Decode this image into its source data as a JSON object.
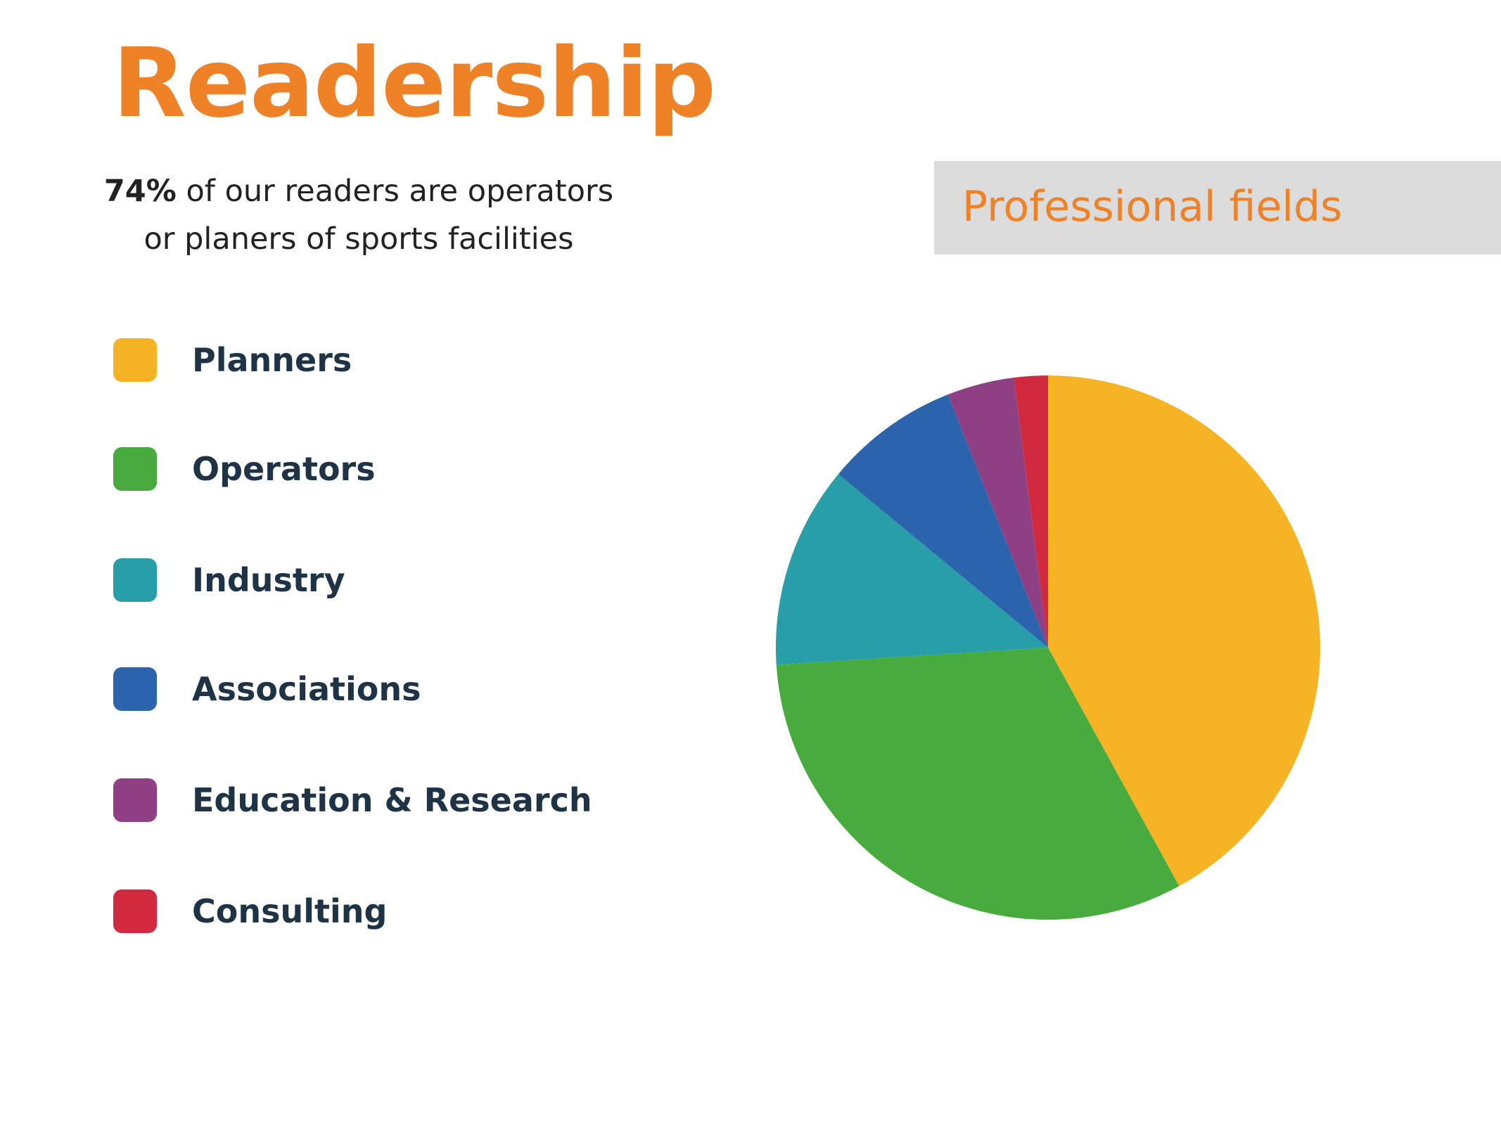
{
  "title": "Readership",
  "subtitle": {
    "highlight": "74%",
    "line1": " of our readers are operators",
    "line2": "or planers of sports facilities"
  },
  "accent_color": "#ef8227",
  "chart_data": {
    "type": "pie",
    "title": "Professional fields",
    "start": "12 o'clock, clockwise",
    "legend_position": "left",
    "categories": [
      "Planners",
      "Operators",
      "Industry",
      "Associations",
      "Education & Research",
      "Consulting"
    ],
    "values": [
      42,
      32,
      12,
      8,
      4,
      2
    ],
    "colors": [
      "#f6b323",
      "#47ab3e",
      "#279ea8",
      "#2b64ad",
      "#8f3f84",
      "#d12a3e"
    ]
  }
}
